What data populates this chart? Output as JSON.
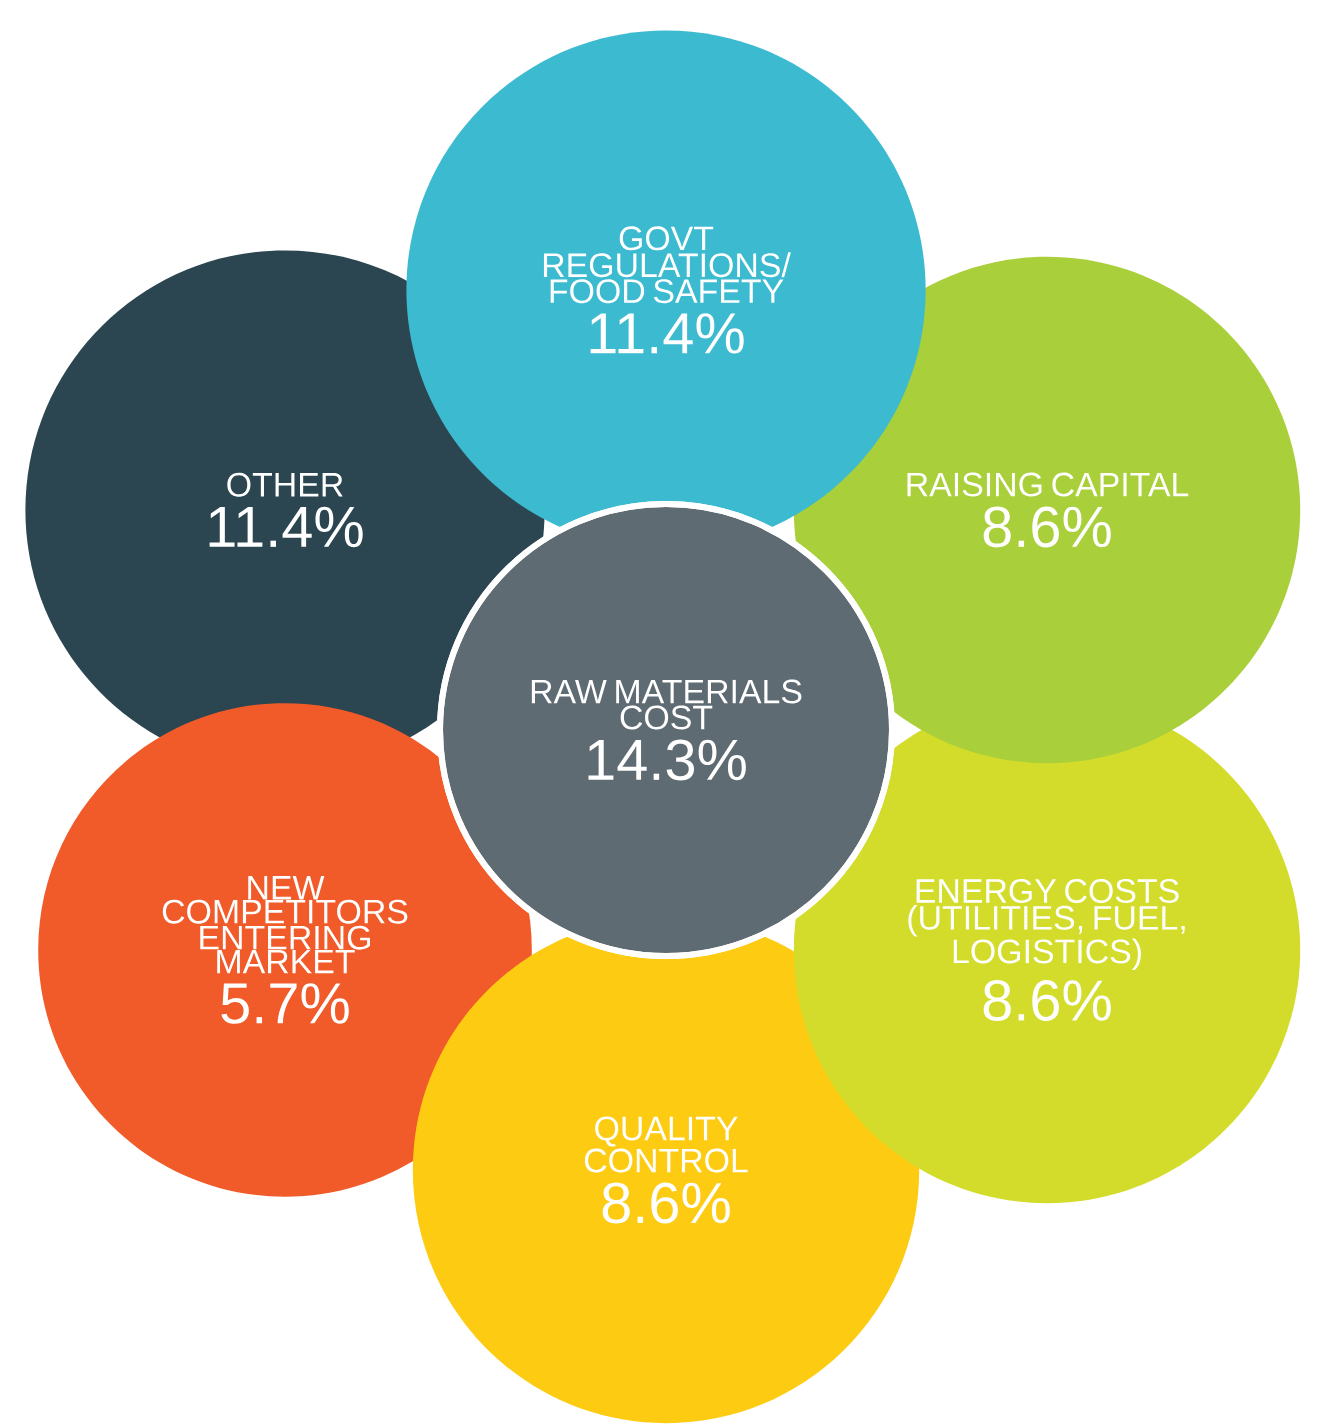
{
  "chart_data": {
    "type": "other",
    "categories": [
      "GOVT REGULATIONS/ FOOD SAFETY",
      "RAISING CAPITAL",
      "ENERGY COSTS (UTILITIES, FUEL, LOGISTICS)",
      "QUALITY CONTROL",
      "NEW COMPETITORS ENTERING MARKET",
      "OTHER",
      "RAW MATERIALS COST"
    ],
    "values": [
      11.4,
      8.6,
      8.6,
      8.6,
      5.7,
      11.4,
      14.3
    ],
    "value_labels": [
      "11.4%",
      "8.6%",
      "8.6%",
      "8.6%",
      "5.7%",
      "11.4%",
      "14.3%"
    ],
    "colors": [
      "#3bbad0",
      "#a9cf3a",
      "#d4dc2b",
      "#fdcc12",
      "#f15a29",
      "#2b4650",
      "#5f6b72"
    ]
  }
}
